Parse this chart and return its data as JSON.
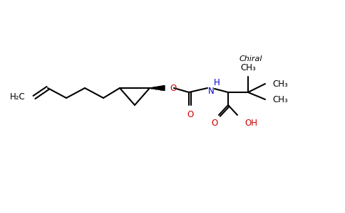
{
  "background_color": "#ffffff",
  "black": "#000000",
  "blue": "#0000cd",
  "red": "#cc0000",
  "chiral_label": "Chiral",
  "h2c_label": "H₂C",
  "nh_label": "H",
  "n_label": "N",
  "oh_label": "OH",
  "o_label": "O",
  "figsize": [
    4.84,
    3.0
  ],
  "dpi": 100
}
